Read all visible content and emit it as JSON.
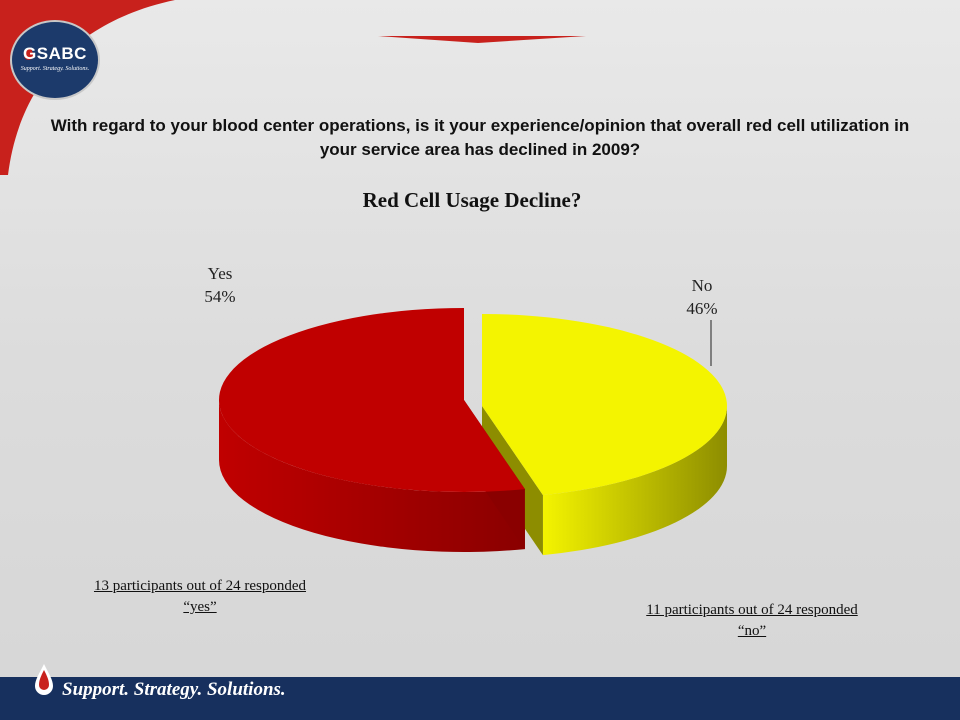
{
  "logo": {
    "text": "GSABC",
    "sub": "Support. Strategy. Solutions."
  },
  "question": "With regard to your blood center operations, is it your experience/opinion that overall red cell utilization in your service area has declined in 2009?",
  "chart_data": {
    "type": "pie",
    "title": "Red Cell Usage Decline?",
    "slices": [
      {
        "label": "Yes",
        "value": 54,
        "display": "54%",
        "color": "#c00000",
        "side_color": "#8a0000"
      },
      {
        "label": "No",
        "value": 46,
        "display": "46%",
        "color": "#f4f400",
        "side_color": "#8d8d00"
      }
    ]
  },
  "notes": {
    "yes": {
      "line1": "13 participants out of 24 responded",
      "line2": "“yes”"
    },
    "no": {
      "line1": "11 participants out of 24 responded",
      "line2": "“no”"
    }
  },
  "footer": {
    "tagline": "Support. Strategy. Solutions."
  },
  "colors": {
    "navy": "#17305e",
    "accent_red": "#c8211c"
  }
}
